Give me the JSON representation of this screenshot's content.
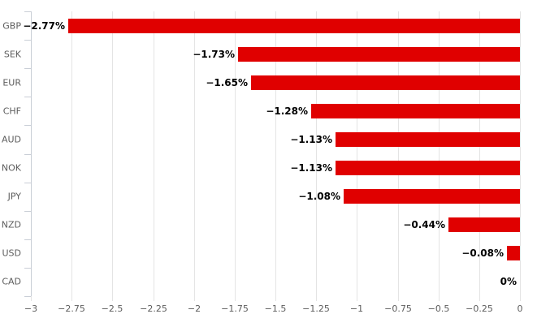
{
  "chart_data": {
    "type": "bar",
    "orientation": "horizontal",
    "title": "",
    "xlabel": "",
    "ylabel": "",
    "categories": [
      "GBP",
      "SEK",
      "EUR",
      "CHF",
      "AUD",
      "NOK",
      "JPY",
      "NZD",
      "USD",
      "CAD"
    ],
    "values": [
      -2.77,
      -1.73,
      -1.65,
      -1.28,
      -1.13,
      -1.13,
      -1.08,
      -0.44,
      -0.08,
      0
    ],
    "value_labels": [
      "−2.77%",
      "−1.73%",
      "−1.65%",
      "−1.28%",
      "−1.13%",
      "−1.13%",
      "−1.08%",
      "−0.44%",
      "−0.08%",
      "0%"
    ],
    "xlim": [
      -3,
      0
    ],
    "x_tick_values": [
      -3,
      -2.75,
      -2.5,
      -2.25,
      -2,
      -1.75,
      -1.5,
      -1.25,
      -1,
      -0.75,
      -0.5,
      -0.25,
      0
    ],
    "x_tick_labels": [
      "−3",
      "−2.75",
      "−2.5",
      "−2.25",
      "−2",
      "−1.75",
      "−1.5",
      "−1.25",
      "−1",
      "−0.75",
      "−0.5",
      "−0.25",
      "0"
    ],
    "grid": true,
    "legend": false,
    "bar_color": "#e00000",
    "background_color": "#ffffff",
    "gridline_color": "#e4e4e4",
    "axis_color": "#c9ced6",
    "category_label_color": "#5c5c5c",
    "value_label_color": "#000000"
  }
}
